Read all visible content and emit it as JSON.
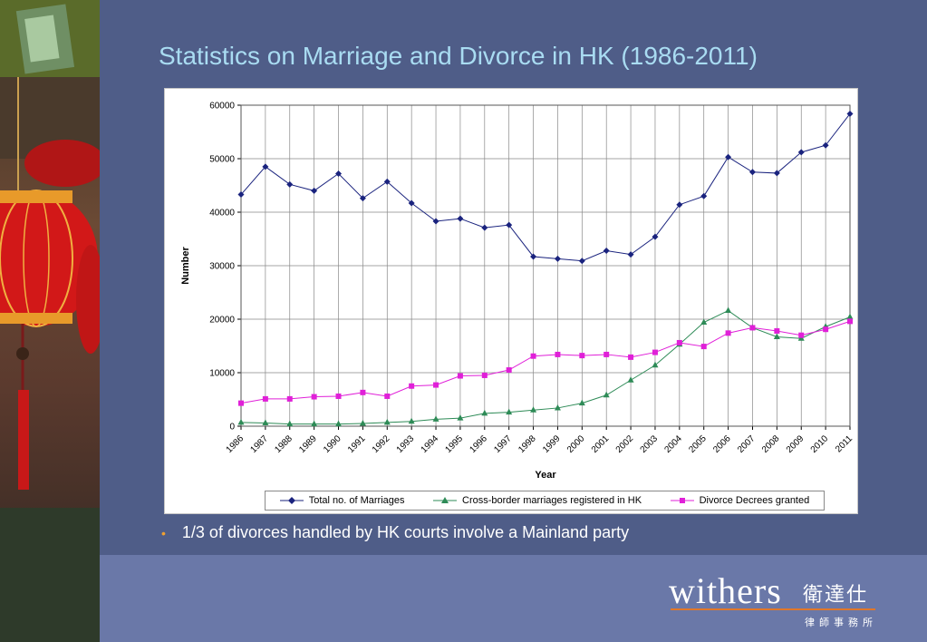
{
  "slide": {
    "title": "Statistics on Marriage and Divorce in HK (1986-2011)",
    "bullet": "1/3 of divorces handled by HK courts involve a Mainland party",
    "bullet_color": "#f0a030",
    "background_color": "#4f5d88",
    "footer_color": "#6a78a8"
  },
  "brand": {
    "name": "withers",
    "chinese_name": "衛達仕",
    "sub_text": "律師事務所",
    "rule_color": "#e0772a"
  },
  "chart_data": {
    "type": "line",
    "xlabel": "Year",
    "ylabel": "Number",
    "ylim": [
      0,
      60000
    ],
    "yticks": [
      0,
      10000,
      20000,
      30000,
      40000,
      50000,
      60000
    ],
    "grid": true,
    "legend_position": "bottom",
    "x": [
      "1986",
      "1987",
      "1988",
      "1989",
      "1990",
      "1991",
      "1992",
      "1993",
      "1994",
      "1995",
      "1996",
      "1997",
      "1998",
      "1999",
      "2000",
      "2001",
      "2002",
      "2003",
      "2004",
      "2005",
      "2006",
      "2007",
      "2008",
      "2009",
      "2010",
      "2011"
    ],
    "series": [
      {
        "name": "Total no. of Marriages",
        "color": "#1a237e",
        "marker": "diamond",
        "values": [
          43300,
          48500,
          45200,
          44000,
          47200,
          42600,
          45700,
          41700,
          38300,
          38800,
          37100,
          37600,
          31700,
          31300,
          30900,
          32800,
          32100,
          35400,
          41400,
          43000,
          50300,
          47500,
          47300,
          51200,
          52500,
          58400
        ]
      },
      {
        "name": "Cross-border marriages registered in HK",
        "color": "#2e8b57",
        "marker": "triangle",
        "values": [
          700,
          600,
          400,
          400,
          400,
          500,
          700,
          900,
          1300,
          1500,
          2400,
          2600,
          3000,
          3400,
          4300,
          5800,
          8600,
          11400,
          15300,
          19400,
          21600,
          18400,
          16700,
          16400,
          18600,
          20400
        ]
      },
      {
        "name": "Divorce Decrees granted",
        "color": "#e020d8",
        "marker": "square",
        "values": [
          4300,
          5100,
          5100,
          5500,
          5600,
          6300,
          5600,
          7500,
          7700,
          9400,
          9500,
          10500,
          13100,
          13400,
          13200,
          13400,
          12900,
          13800,
          15600,
          14900,
          17400,
          18400,
          17800,
          17000,
          18100,
          19600
        ]
      }
    ]
  }
}
